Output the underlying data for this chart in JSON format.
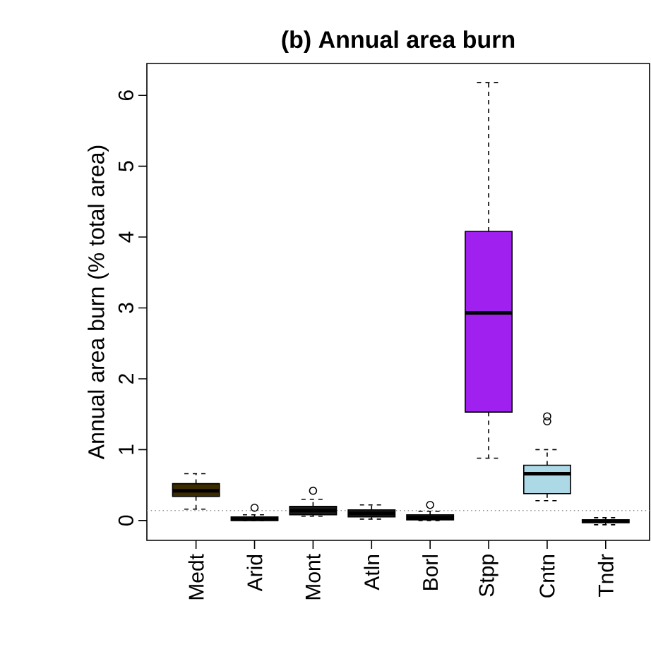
{
  "chart_data": {
    "type": "box",
    "title": "(b) Annual area burn",
    "ylabel": "Annual area burn (% total area)",
    "categories": [
      "Medt",
      "Arid",
      "Mont",
      "Atln",
      "Borl",
      "Stpp",
      "Cntn",
      "Tndr"
    ],
    "colors": [
      "#3d2b00",
      "#1a1a1a",
      "#1a1a1a",
      "#1a1a1a",
      "#1a1a1a",
      "#a020f0",
      "#add8e6",
      "#1a1a1a"
    ],
    "boxes": [
      {
        "low": 0.16,
        "q1": 0.34,
        "median": 0.42,
        "q3": 0.52,
        "high": 0.66
      },
      {
        "low": 0.0,
        "q1": 0.0,
        "median": 0.02,
        "q3": 0.05,
        "high": 0.08,
        "outliers": [
          0.18
        ]
      },
      {
        "low": 0.06,
        "q1": 0.08,
        "median": 0.14,
        "q3": 0.2,
        "high": 0.3,
        "outliers": [
          0.42
        ]
      },
      {
        "low": 0.02,
        "q1": 0.05,
        "median": 0.1,
        "q3": 0.15,
        "high": 0.22
      },
      {
        "low": 0.0,
        "q1": 0.01,
        "median": 0.04,
        "q3": 0.08,
        "high": 0.13,
        "outliers": [
          0.22
        ]
      },
      {
        "low": 0.88,
        "q1": 1.53,
        "median": 2.93,
        "q3": 4.08,
        "high": 6.18
      },
      {
        "low": 0.28,
        "q1": 0.38,
        "median": 0.66,
        "q3": 0.78,
        "high": 1.0,
        "outliers": [
          1.4,
          1.47
        ]
      },
      {
        "low": -0.06,
        "q1": -0.03,
        "median": -0.01,
        "q3": 0.01,
        "high": 0.04
      }
    ],
    "ylim": [
      -0.28,
      6.45
    ],
    "yticks": [
      0,
      1,
      2,
      3,
      4,
      5,
      6
    ],
    "ref_lines": [
      {
        "axis": "y",
        "value": 0.14,
        "color": "#999999",
        "line_style": "dotted"
      }
    ]
  }
}
